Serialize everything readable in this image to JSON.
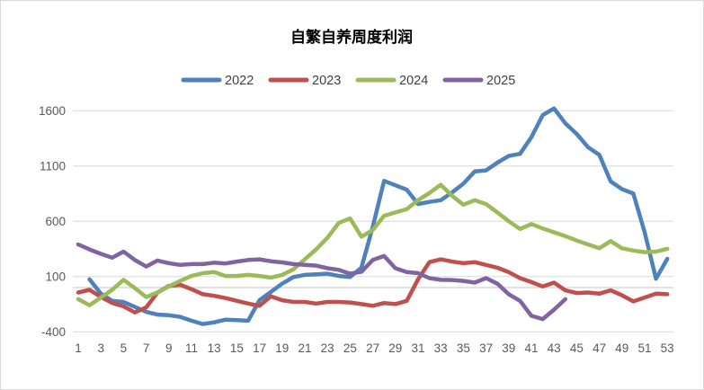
{
  "chart_data": {
    "type": "line",
    "title": "自繁自养周度利润",
    "xlabel": "",
    "ylabel": "",
    "x_unit": "week",
    "x_tick_labels": [
      1,
      3,
      5,
      7,
      9,
      11,
      13,
      15,
      17,
      19,
      21,
      23,
      25,
      27,
      29,
      31,
      33,
      35,
      37,
      39,
      41,
      43,
      45,
      47,
      49,
      51,
      53
    ],
    "y_ticks": [
      1600,
      1100,
      600,
      100,
      -400
    ],
    "ylim": [
      -400,
      1600
    ],
    "grid": "horizontal",
    "legend_position": "top-center",
    "series": [
      {
        "name": "2022",
        "color": "#4F81BD",
        "values": [
          null,
          75,
          -55,
          -120,
          -130,
          -175,
          -220,
          -245,
          -250,
          -265,
          -300,
          -330,
          -315,
          -290,
          -295,
          -300,
          -115,
          -40,
          35,
          95,
          115,
          120,
          125,
          105,
          95,
          180,
          550,
          965,
          925,
          885,
          755,
          775,
          790,
          860,
          940,
          1050,
          1060,
          1130,
          1190,
          1210,
          1360,
          1560,
          1620,
          1485,
          1390,
          1270,
          1200,
          960,
          890,
          850,
          500,
          80,
          260
        ]
      },
      {
        "name": "2023",
        "color": "#C0504D",
        "values": [
          -45,
          -20,
          -85,
          -140,
          -170,
          -225,
          -180,
          -45,
          15,
          25,
          -15,
          -60,
          -75,
          -95,
          -120,
          -145,
          -165,
          -80,
          -115,
          -130,
          -130,
          -145,
          -130,
          -130,
          -135,
          -150,
          -165,
          -140,
          -150,
          -120,
          75,
          230,
          255,
          235,
          220,
          230,
          205,
          180,
          140,
          85,
          50,
          10,
          45,
          -25,
          -50,
          -45,
          -55,
          -25,
          -70,
          -125,
          -90,
          -55,
          -60
        ]
      },
      {
        "name": "2024",
        "color": "#9BBB59",
        "values": [
          -105,
          -160,
          -90,
          -20,
          70,
          -5,
          -85,
          -45,
          10,
          60,
          105,
          130,
          140,
          105,
          105,
          115,
          105,
          90,
          115,
          165,
          255,
          345,
          450,
          585,
          625,
          460,
          520,
          650,
          680,
          710,
          790,
          855,
          930,
          830,
          750,
          790,
          755,
          680,
          600,
          530,
          575,
          535,
          500,
          465,
          425,
          390,
          355,
          420,
          355,
          335,
          320,
          325,
          350
        ]
      },
      {
        "name": "2025",
        "color": "#8064A2",
        "values": [
          390,
          345,
          305,
          270,
          325,
          250,
          190,
          245,
          220,
          205,
          212,
          212,
          225,
          218,
          235,
          250,
          255,
          238,
          228,
          212,
          205,
          198,
          175,
          160,
          125,
          143,
          250,
          285,
          175,
          140,
          130,
          85,
          70,
          68,
          60,
          45,
          85,
          35,
          -60,
          -120,
          -255,
          -285,
          -200,
          -105,
          null,
          null,
          null,
          null,
          null,
          null,
          null,
          null,
          null
        ]
      }
    ]
  },
  "colors": {
    "background": "#FFFFFF",
    "frame_border": "#D9D9D9",
    "gridline": "#D9D9D9",
    "zero_line": "#C6C6C6",
    "tick_label": "#595959",
    "title": "#000000",
    "legend_text": "#404040"
  }
}
